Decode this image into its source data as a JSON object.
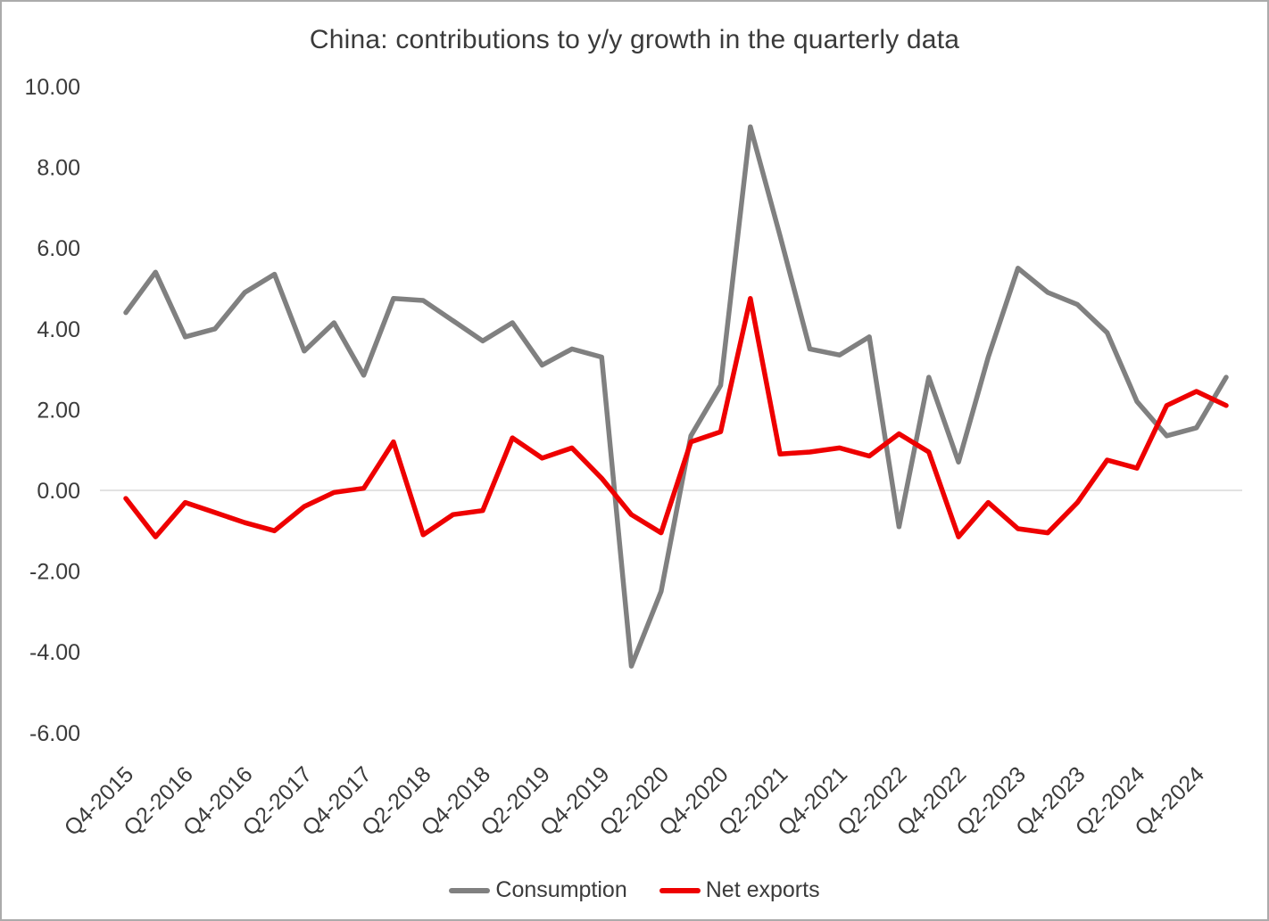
{
  "chart": {
    "title": "China: contributions to y/y growth in the quarterly data"
  },
  "chart_data": {
    "type": "line",
    "title": "China: contributions to y/y growth in the quarterly data",
    "xlabel": "",
    "ylabel": "",
    "ylim": [
      -6,
      10
    ],
    "y_tick_step": 2,
    "y_tick_labels": [
      "10.00",
      "8.00",
      "6.00",
      "4.00",
      "2.00",
      "0.00",
      "-2.00",
      "-4.00",
      "-6.00"
    ],
    "grid": "single light horizontal line at zero",
    "legend_position": "bottom-center",
    "x_tick_every": 2,
    "x_tick_labels_shown": [
      "Q4-2015",
      "Q2-2016",
      "Q4-2016",
      "Q2-2017",
      "Q4-2017",
      "Q2-2018",
      "Q4-2018",
      "Q2-2019",
      "Q4-2019",
      "Q2-2020",
      "Q4-2020",
      "Q2-2021",
      "Q4-2021",
      "Q2-2022",
      "Q4-2022",
      "Q2-2023",
      "Q4-2023",
      "Q2-2024",
      "Q4-2024"
    ],
    "categories": [
      "Q4-2015",
      "Q1-2016",
      "Q2-2016",
      "Q3-2016",
      "Q4-2016",
      "Q1-2017",
      "Q2-2017",
      "Q3-2017",
      "Q4-2017",
      "Q1-2018",
      "Q2-2018",
      "Q3-2018",
      "Q4-2018",
      "Q1-2019",
      "Q2-2019",
      "Q3-2019",
      "Q4-2019",
      "Q1-2020",
      "Q2-2020",
      "Q3-2020",
      "Q4-2020",
      "Q1-2021",
      "Q2-2021",
      "Q3-2021",
      "Q4-2021",
      "Q1-2022",
      "Q2-2022",
      "Q3-2022",
      "Q4-2022",
      "Q1-2023",
      "Q2-2023",
      "Q3-2023",
      "Q4-2023",
      "Q1-2024",
      "Q2-2024",
      "Q3-2024",
      "Q4-2024",
      "Q1-2025"
    ],
    "series": [
      {
        "name": "Consumption",
        "color": "#808080",
        "values": [
          4.4,
          5.4,
          3.8,
          4.0,
          4.9,
          5.35,
          3.45,
          4.15,
          2.85,
          4.75,
          4.7,
          4.2,
          3.7,
          4.15,
          3.1,
          3.5,
          3.3,
          -4.35,
          -2.5,
          1.35,
          2.6,
          9.0,
          6.3,
          3.5,
          3.35,
          3.8,
          -0.9,
          2.8,
          0.7,
          3.3,
          5.5,
          4.9,
          4.6,
          3.9,
          2.2,
          1.35,
          1.55,
          2.8
        ]
      },
      {
        "name": "Net exports",
        "color": "#ee0000",
        "values": [
          -0.2,
          -1.15,
          -0.3,
          -0.55,
          -0.8,
          -1.0,
          -0.4,
          -0.05,
          0.05,
          1.2,
          -1.1,
          -0.6,
          -0.5,
          1.3,
          0.8,
          1.05,
          0.3,
          -0.6,
          -1.05,
          1.2,
          1.45,
          4.75,
          0.9,
          0.95,
          1.05,
          0.85,
          1.4,
          0.95,
          -1.15,
          -0.3,
          -0.95,
          -1.05,
          -0.3,
          0.75,
          0.55,
          2.1,
          2.45,
          2.1
        ]
      }
    ]
  }
}
